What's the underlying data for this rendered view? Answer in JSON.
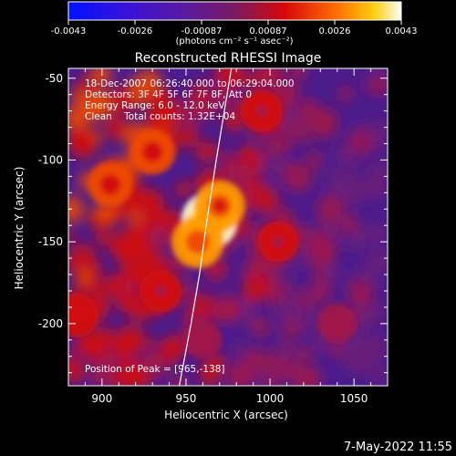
{
  "colorbar": {
    "tick_labels": [
      "-0.0043",
      "-0.0026",
      "-0.00087",
      "0.00087",
      "0.0026",
      "0.0043"
    ],
    "unit_label": "(photons cm⁻² s⁻¹ asec⁻²)",
    "colormap": "rainbow/fire: blue-violet-purple-red-orange-yellow-white"
  },
  "title": "Reconstructed RHESSI Image",
  "annotations": {
    "time_range": "18-Dec-2007 06:26:40.000 to 06:29:04.000",
    "detectors": "Detectors: 3F 4F 5F 6F 7F 8F, Att 0",
    "energy": "Energy Range: 6.0 - 12.0 keV",
    "clean": "Clean    Total counts: 1.32E+04",
    "peak": "Position of Peak = [965,-138]"
  },
  "footer": {
    "timestamp": "7-May-2022 11:55"
  },
  "chart_data": {
    "type": "heatmap",
    "title": "Reconstructed RHESSI Image",
    "xlabel": "Heliocentric X (arcsec)",
    "ylabel": "Heliocentric Y (arcsec)",
    "xlim": [
      880,
      1070
    ],
    "ylim": [
      -238,
      -44
    ],
    "x_ticks": [
      900,
      950,
      1000,
      1050
    ],
    "y_ticks": [
      -50,
      -100,
      -150,
      -200
    ],
    "x_tick_labels": [
      "900",
      "950",
      "1000",
      "1050"
    ],
    "y_tick_labels": [
      "-50",
      "-100",
      "-150",
      "-200"
    ],
    "color_range": [
      -0.0043,
      0.0043
    ],
    "peak_position": [
      965,
      -138
    ],
    "limb_curve": [
      [
        946,
        -238
      ],
      [
        953,
        -200
      ],
      [
        958,
        -170
      ],
      [
        962,
        -140
      ],
      [
        968,
        -100
      ],
      [
        977,
        -44
      ]
    ],
    "bright_regions": [
      {
        "x": 964,
        "y": -137,
        "level": 1.0
      },
      {
        "x": 957,
        "y": -150,
        "level": 0.85
      },
      {
        "x": 970,
        "y": -128,
        "level": 0.8
      },
      {
        "x": 905,
        "y": -115,
        "level": 0.6
      },
      {
        "x": 930,
        "y": -95,
        "level": 0.6
      },
      {
        "x": 885,
        "y": -195,
        "level": 0.55
      },
      {
        "x": 935,
        "y": -180,
        "level": 0.5
      },
      {
        "x": 995,
        "y": -70,
        "level": 0.5
      },
      {
        "x": 1005,
        "y": -150,
        "level": 0.45
      },
      {
        "x": 1040,
        "y": -200,
        "level": 0.35
      },
      {
        "x": 960,
        "y": -210,
        "level": 0.35
      }
    ],
    "grid": false
  }
}
